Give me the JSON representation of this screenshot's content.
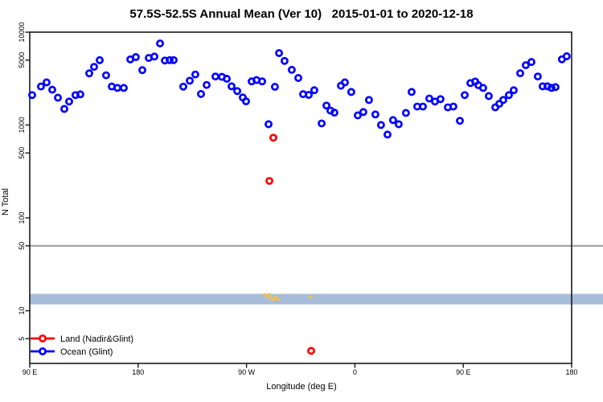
{
  "chart_data": {
    "type": "scatter",
    "title": "57.5S-52.5S Annual Mean (Ver 10)   2015-01-01 to 2020-12-18",
    "xlabel": "Longitude (deg E)",
    "ylabel": "N Total",
    "x_axis": {
      "range": [
        90,
        540
      ],
      "ticks": [
        {
          "pos": 90,
          "label": "90 E"
        },
        {
          "pos": 180,
          "label": "180"
        },
        {
          "pos": 270,
          "label": "90 W"
        },
        {
          "pos": 360,
          "label": "0"
        },
        {
          "pos": 450,
          "label": "90 E"
        },
        {
          "pos": 540,
          "label": "180"
        }
      ]
    },
    "y_axis": {
      "scale": "log",
      "range": [
        2.6,
        10000
      ],
      "ticks": [
        {
          "value": 10000,
          "label": "10000"
        },
        {
          "value": 5000,
          "label": "5000"
        },
        {
          "value": 1000,
          "label": "1000"
        },
        {
          "value": 500,
          "label": "500"
        },
        {
          "value": 100,
          "label": "100"
        },
        {
          "value": 50,
          "label": "50"
        },
        {
          "value": 10,
          "label": "10"
        },
        {
          "value": 5,
          "label": "5"
        }
      ]
    },
    "reference_line": {
      "y": 50,
      "color": "#999999"
    },
    "band": {
      "y_min": 11.7,
      "y_max": 15.2,
      "color": "#a7bcd8"
    },
    "grid": false,
    "legend_position": "bottom-left",
    "series": [
      {
        "name": "Land (Nadir&Glint)",
        "color": "#ff0000",
        "points": [
          [
            289,
            250
          ],
          [
            292.3,
            730
          ],
          [
            323.7,
            3.7
          ]
        ]
      },
      {
        "name": "Ocean (Glint)",
        "color": "#0000ff",
        "points": [
          [
            92,
            2100
          ],
          [
            99.3,
            2600
          ],
          [
            104,
            2880
          ],
          [
            108.7,
            2400
          ],
          [
            113.4,
            1970
          ],
          [
            118.7,
            1490
          ],
          [
            122.7,
            1790
          ],
          [
            128,
            2100
          ],
          [
            132,
            2140
          ],
          [
            139.4,
            3600
          ],
          [
            143.4,
            4230
          ],
          [
            148.1,
            4990
          ],
          [
            153.4,
            3430
          ],
          [
            158.1,
            2600
          ],
          [
            162.8,
            2510
          ],
          [
            168.1,
            2510
          ],
          [
            173.5,
            5090
          ],
          [
            178.1,
            5390
          ],
          [
            183.5,
            3900
          ],
          [
            188.8,
            5270
          ],
          [
            193.5,
            5460
          ],
          [
            198.2,
            7560
          ],
          [
            202.2,
            4950
          ],
          [
            206.2,
            5000
          ],
          [
            209.5,
            5000
          ],
          [
            217.5,
            2590
          ],
          [
            222.9,
            3000
          ],
          [
            227.5,
            3500
          ],
          [
            232.2,
            2160
          ],
          [
            236.9,
            2700
          ],
          [
            244.2,
            3330
          ],
          [
            249.6,
            3300
          ],
          [
            253.6,
            3150
          ],
          [
            257.6,
            2610
          ],
          [
            262.3,
            2320
          ],
          [
            266.9,
            1980
          ],
          [
            269.6,
            1800
          ],
          [
            274.3,
            2950
          ],
          [
            278.3,
            3050
          ],
          [
            283,
            2950
          ],
          [
            288.3,
            1020
          ],
          [
            293.6,
            2580
          ],
          [
            297,
            5950
          ],
          [
            301.6,
            4900
          ],
          [
            307.6,
            3930
          ],
          [
            313,
            3210
          ],
          [
            317,
            2150
          ],
          [
            321.7,
            2110
          ],
          [
            326.3,
            2370
          ],
          [
            332.4,
            1040
          ],
          [
            336.4,
            1620
          ],
          [
            339.7,
            1430
          ],
          [
            343,
            1360
          ],
          [
            348.4,
            2650
          ],
          [
            351.7,
            2880
          ],
          [
            357,
            2270
          ],
          [
            362.4,
            1270
          ],
          [
            367,
            1380
          ],
          [
            371.7,
            1860
          ],
          [
            377,
            1300
          ],
          [
            381.7,
            1000
          ],
          [
            387.1,
            790
          ],
          [
            391.7,
            1130
          ],
          [
            396.4,
            1020
          ],
          [
            402.4,
            1350
          ],
          [
            407.1,
            2270
          ],
          [
            411.8,
            1580
          ],
          [
            416.5,
            1580
          ],
          [
            421.8,
            1930
          ],
          [
            426.5,
            1790
          ],
          [
            431.1,
            1900
          ],
          [
            437.2,
            1550
          ],
          [
            441.8,
            1580
          ],
          [
            447.2,
            1110
          ],
          [
            451.2,
            2100
          ],
          [
            455.9,
            2830
          ],
          [
            459.9,
            2940
          ],
          [
            462.5,
            2690
          ],
          [
            466.5,
            2510
          ],
          [
            471.2,
            2050
          ],
          [
            476.6,
            1550
          ],
          [
            479.9,
            1690
          ],
          [
            483.2,
            1860
          ],
          [
            487.9,
            2100
          ],
          [
            491.9,
            2370
          ],
          [
            497.3,
            3610
          ],
          [
            501.9,
            4410
          ],
          [
            506.6,
            4770
          ],
          [
            511.9,
            3330
          ],
          [
            515.9,
            2610
          ],
          [
            519.9,
            2610
          ],
          [
            523.3,
            2510
          ],
          [
            526.6,
            2560
          ],
          [
            531.9,
            5100
          ],
          [
            535.9,
            5500
          ]
        ]
      }
    ],
    "small_marks": {
      "color": "#f2c14e",
      "points": [
        [
          285,
          14.9
        ],
        [
          287,
          14.3
        ],
        [
          289,
          14.9
        ],
        [
          290.3,
          13.7
        ],
        [
          292.3,
          13.2
        ],
        [
          294.3,
          14.0
        ],
        [
          296.3,
          13.2
        ],
        [
          323,
          14.0
        ]
      ]
    }
  }
}
